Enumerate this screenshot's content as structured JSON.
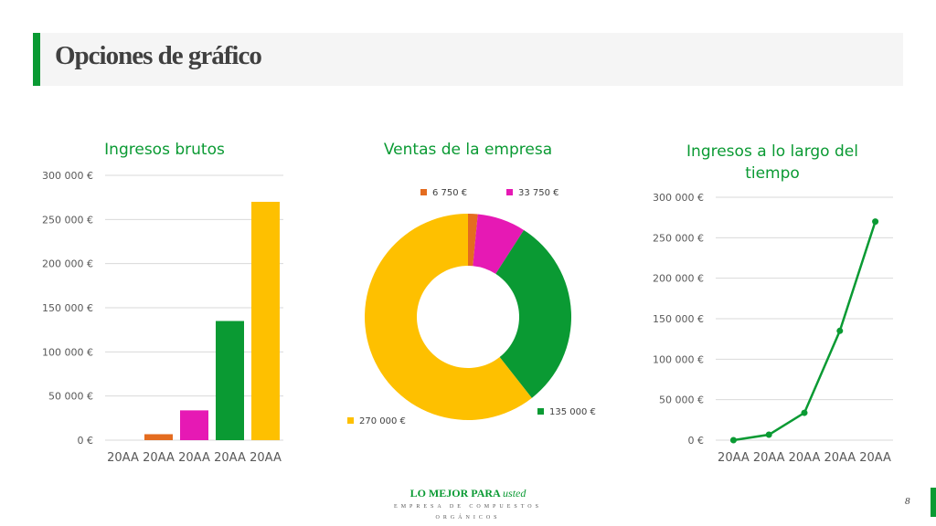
{
  "slide": {
    "title": "Opciones de gráfico",
    "page_number": "8",
    "footer_brand_main": "LO MEJOR PARA",
    "footer_brand_em": "usted",
    "footer_subtitle": "EMPRESA DE COMPUESTOS ORGÁNICOS"
  },
  "colors": {
    "green": "#0a9a33",
    "orange": "#e46c1f",
    "magenta": "#e619b4",
    "yellow": "#fec000"
  },
  "chart_data": [
    {
      "type": "bar",
      "title": "Ingresos brutos",
      "categories": [
        "20AA",
        "20AA",
        "20AA",
        "20AA",
        "20AA"
      ],
      "values": [
        0,
        6750,
        33750,
        135000,
        270000
      ],
      "bar_colors": [
        "#0a9a33",
        "#e46c1f",
        "#e619b4",
        "#0a9a33",
        "#fec000"
      ],
      "ylim": [
        0,
        300000
      ],
      "y_ticks": [
        "0 €",
        "50 000 €",
        "100 000 €",
        "150 000 €",
        "200 000 €",
        "250 000 €",
        "300 000 €"
      ],
      "grid": true
    },
    {
      "type": "pie",
      "title": "Ventas de la empresa",
      "donut": true,
      "slices": [
        {
          "label": "6 750 €",
          "value": 6750,
          "color": "#e46c1f"
        },
        {
          "label": "33 750 €",
          "value": 33750,
          "color": "#e619b4"
        },
        {
          "label": "135 000 €",
          "value": 135000,
          "color": "#0a9a33"
        },
        {
          "label": "270 000 €",
          "value": 270000,
          "color": "#fec000"
        }
      ]
    },
    {
      "type": "line",
      "title": "Ingresos a lo largo del tiempo",
      "categories": [
        "20AA",
        "20AA",
        "20AA",
        "20AA",
        "20AA"
      ],
      "values": [
        0,
        6750,
        33750,
        135000,
        270000
      ],
      "color": "#0a9a33",
      "ylim": [
        0,
        300000
      ],
      "y_ticks": [
        "0 €",
        "50 000 €",
        "100 000 €",
        "150 000 €",
        "200 000 €",
        "250 000 €",
        "300 000 €"
      ],
      "grid": true
    }
  ]
}
